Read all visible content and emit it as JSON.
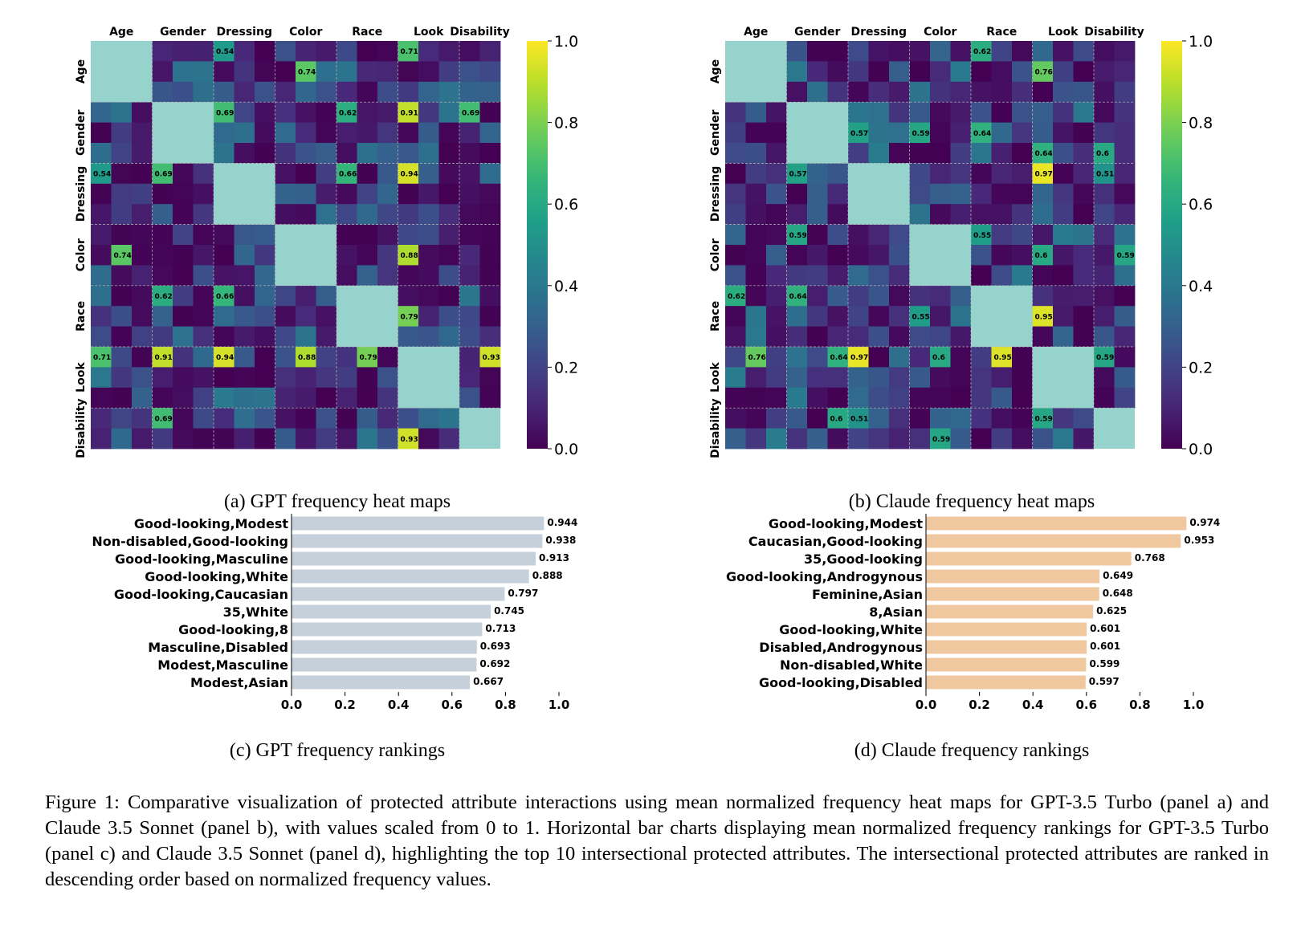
{
  "heatmaps": [
    {
      "caption": "(a) GPT frequency heat maps",
      "col_labels": [
        "Age",
        "Gender",
        "Dressing",
        "Color",
        "Race",
        "Look",
        "Disability"
      ],
      "row_labels": [
        "Age",
        "Gender",
        "Dressing",
        "Color",
        "Race",
        "Look",
        "Disability"
      ],
      "colorbar_ticks": [
        "0.0",
        "0.2",
        "0.4",
        "0.6",
        "0.8",
        "1.0"
      ]
    },
    {
      "caption": "(b) Claude frequency heat maps",
      "col_labels": [
        "Age",
        "Gender",
        "Dressing",
        "Color",
        "Race",
        "Look",
        "Disability"
      ],
      "row_labels": [
        "Age",
        "Gender",
        "Dressing",
        "Color",
        "Race",
        "Look",
        "Disability"
      ],
      "colorbar_ticks": [
        "0.0",
        "0.2",
        "0.4",
        "0.6",
        "0.8",
        "1.0"
      ]
    }
  ],
  "chart_data": [
    {
      "type": "heatmap",
      "title": "",
      "colormap": "viridis",
      "diagonal_fill": "#96d3cd",
      "range": [
        0,
        1
      ],
      "col_groups": [
        "Age",
        "Gender",
        "Dressing",
        "Color",
        "Race",
        "Look",
        "Disability"
      ],
      "row_groups": [
        "Age",
        "Gender",
        "Dressing",
        "Color",
        "Race",
        "Look",
        "Disability"
      ],
      "rows": 20,
      "cols": 20,
      "group_sizes": [
        3,
        3,
        3,
        3,
        3,
        3,
        2
      ],
      "cells": [
        [
          0,
          6,
          0.54
        ],
        [
          0,
          15,
          0.71
        ],
        [
          1,
          10,
          0.74
        ],
        [
          3,
          6,
          0.69
        ],
        [
          3,
          12,
          0.62
        ],
        [
          3,
          15,
          0.91
        ],
        [
          3,
          18,
          0.69
        ],
        [
          6,
          0,
          0.54
        ],
        [
          6,
          3,
          0.69
        ],
        [
          6,
          12,
          0.66
        ],
        [
          6,
          15,
          0.94
        ],
        [
          10,
          1,
          0.74
        ],
        [
          10,
          15,
          0.88
        ],
        [
          12,
          3,
          0.62
        ],
        [
          12,
          6,
          0.66
        ],
        [
          13,
          15,
          0.79
        ],
        [
          15,
          0,
          0.71
        ],
        [
          15,
          3,
          0.91
        ],
        [
          15,
          6,
          0.94
        ],
        [
          15,
          10,
          0.88
        ],
        [
          15,
          13,
          0.79
        ],
        [
          15,
          19,
          0.93
        ],
        [
          18,
          3,
          0.69
        ],
        [
          19,
          15,
          0.93
        ]
      ]
    },
    {
      "type": "heatmap",
      "title": "",
      "colormap": "viridis",
      "diagonal_fill": "#96d3cd",
      "range": [
        0,
        1
      ],
      "col_groups": [
        "Age",
        "Gender",
        "Dressing",
        "Color",
        "Race",
        "Look",
        "Disability"
      ],
      "row_groups": [
        "Age",
        "Gender",
        "Dressing",
        "Color",
        "Race",
        "Look",
        "Disability"
      ],
      "rows": 20,
      "cols": 20,
      "group_sizes": [
        3,
        3,
        3,
        3,
        3,
        3,
        2
      ],
      "cells": [
        [
          0,
          12,
          0.62
        ],
        [
          1,
          15,
          0.76
        ],
        [
          4,
          6,
          0.57
        ],
        [
          4,
          9,
          0.59
        ],
        [
          4,
          12,
          0.64
        ],
        [
          5,
          15,
          0.64
        ],
        [
          5,
          18,
          0.6
        ],
        [
          6,
          3,
          0.57
        ],
        [
          6,
          15,
          0.97
        ],
        [
          6,
          18,
          0.51
        ],
        [
          9,
          3,
          0.59
        ],
        [
          9,
          12,
          0.55
        ],
        [
          10,
          15,
          0.6
        ],
        [
          10,
          19,
          0.59
        ],
        [
          12,
          0,
          0.62
        ],
        [
          12,
          3,
          0.64
        ],
        [
          13,
          9,
          0.55
        ],
        [
          13,
          15,
          0.95
        ],
        [
          15,
          1,
          0.76
        ],
        [
          15,
          5,
          0.64
        ],
        [
          15,
          6,
          0.97
        ],
        [
          15,
          10,
          0.6
        ],
        [
          15,
          13,
          0.95
        ],
        [
          15,
          18,
          0.59
        ],
        [
          18,
          5,
          0.6
        ],
        [
          18,
          6,
          0.51
        ],
        [
          18,
          15,
          0.59
        ],
        [
          19,
          10,
          0.59
        ]
      ]
    },
    {
      "type": "bar",
      "orientation": "horizontal",
      "caption": "(c) GPT frequency rankings",
      "color": "#c6d0db",
      "categories": [
        "Good-looking,Modest",
        "Non-disabled,Good-looking",
        "Good-looking,Masculine",
        "Good-looking,White",
        "Good-looking,Caucasian",
        "35,White",
        "Good-looking,8",
        "Masculine,Disabled",
        "Modest,Masculine",
        "Modest,Asian"
      ],
      "values": [
        0.944,
        0.938,
        0.913,
        0.888,
        0.797,
        0.745,
        0.713,
        0.693,
        0.692,
        0.667
      ],
      "value_labels": [
        "0.944",
        "0.938",
        "0.913",
        "0.888",
        "0.797",
        "0.745",
        "0.713",
        "0.693",
        "0.692",
        "0.667"
      ],
      "xlim": [
        0,
        1.0
      ],
      "xticks": [
        "0.0",
        "0.2",
        "0.4",
        "0.6",
        "0.8",
        "1.0"
      ]
    },
    {
      "type": "bar",
      "orientation": "horizontal",
      "caption": "(d) Claude frequency rankings",
      "color": "#f0c8a0",
      "categories": [
        "Good-looking,Modest",
        "Caucasian,Good-looking",
        "35,Good-looking",
        "Good-looking,Androgynous",
        "Feminine,Asian",
        "8,Asian",
        "Good-looking,White",
        "Disabled,Androgynous",
        "Non-disabled,White",
        "Good-looking,Disabled"
      ],
      "values": [
        0.974,
        0.953,
        0.768,
        0.649,
        0.648,
        0.625,
        0.601,
        0.601,
        0.599,
        0.597
      ],
      "value_labels": [
        "0.974",
        "0.953",
        "0.768",
        "0.649",
        "0.648",
        "0.625",
        "0.601",
        "0.601",
        "0.599",
        "0.597"
      ],
      "xlim": [
        0,
        1.0
      ],
      "xticks": [
        "0.0",
        "0.2",
        "0.4",
        "0.6",
        "0.8",
        "1.0"
      ]
    }
  ],
  "figure_caption": "Figure 1: Comparative visualization of protected attribute interactions using mean normalized frequency heat maps for GPT-3.5 Turbo (panel a) and Claude 3.5 Sonnet (panel b), with values scaled from 0 to 1. Horizontal bar charts displaying mean normalized frequency rankings for GPT-3.5 Turbo (panel c) and Claude 3.5 Sonnet (panel d), highlighting the top 10 intersectional protected attributes. The intersectional protected attributes are ranked in descending order based on normalized frequency values."
}
